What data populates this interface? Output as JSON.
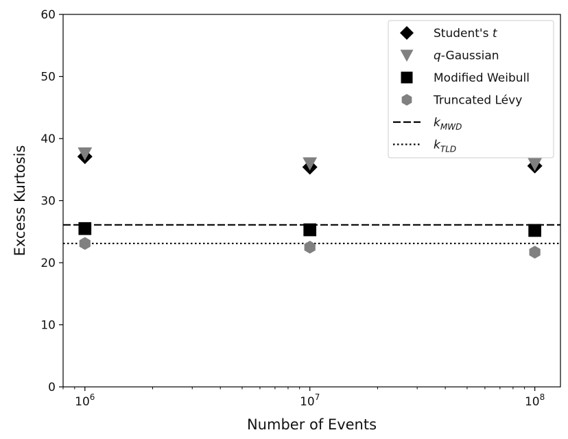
{
  "chart_data": {
    "type": "scatter",
    "xlabel": "Number of Events",
    "ylabel": "Excess Kurtosis",
    "xscale": "log",
    "xlim": [
      800000,
      130000000
    ],
    "ylim": [
      0,
      60
    ],
    "grid": false,
    "legend_position": "top-right",
    "x_ticks": [
      {
        "value": 1000000,
        "base": "10",
        "exp": "6"
      },
      {
        "value": 10000000,
        "base": "10",
        "exp": "7"
      },
      {
        "value": 100000000,
        "base": "10",
        "exp": "8"
      }
    ],
    "y_ticks": [
      {
        "value": 0,
        "label": "0"
      },
      {
        "value": 10,
        "label": "10"
      },
      {
        "value": 20,
        "label": "20"
      },
      {
        "value": 30,
        "label": "30"
      },
      {
        "value": 40,
        "label": "40"
      },
      {
        "value": 50,
        "label": "50"
      },
      {
        "value": 60,
        "label": "60"
      }
    ],
    "x": [
      1000000,
      10000000,
      100000000
    ],
    "series": [
      {
        "name": "Student's t",
        "legend_main": "Student's ",
        "legend_italic": "t",
        "marker": "diamond",
        "color": "#000000",
        "values": [
          37.1,
          35.4,
          35.6
        ]
      },
      {
        "name": "q-Gaussian",
        "legend_italic_prefix": "q",
        "legend_main": "-Gaussian",
        "marker": "triangle-down",
        "color": "#808080",
        "values": [
          37.6,
          36.0,
          35.9
        ]
      },
      {
        "name": "Modified Weibull",
        "legend_main": "Modified Weibull",
        "marker": "square",
        "color": "#000000",
        "values": [
          25.5,
          25.3,
          25.2
        ]
      },
      {
        "name": "Truncated Lévy",
        "legend_main": "Truncated Lévy",
        "marker": "hexagon",
        "color": "#808080",
        "values": [
          23.1,
          22.5,
          21.7
        ]
      }
    ],
    "reference_lines": [
      {
        "name": "k_MWD",
        "symbol": "k",
        "subscript": "MWD",
        "style": "dashed",
        "color": "#000000",
        "value": 26.1
      },
      {
        "name": "k_TLD",
        "symbol": "k",
        "subscript": "TLD",
        "style": "dotted",
        "color": "#000000",
        "value": 23.1
      }
    ]
  }
}
